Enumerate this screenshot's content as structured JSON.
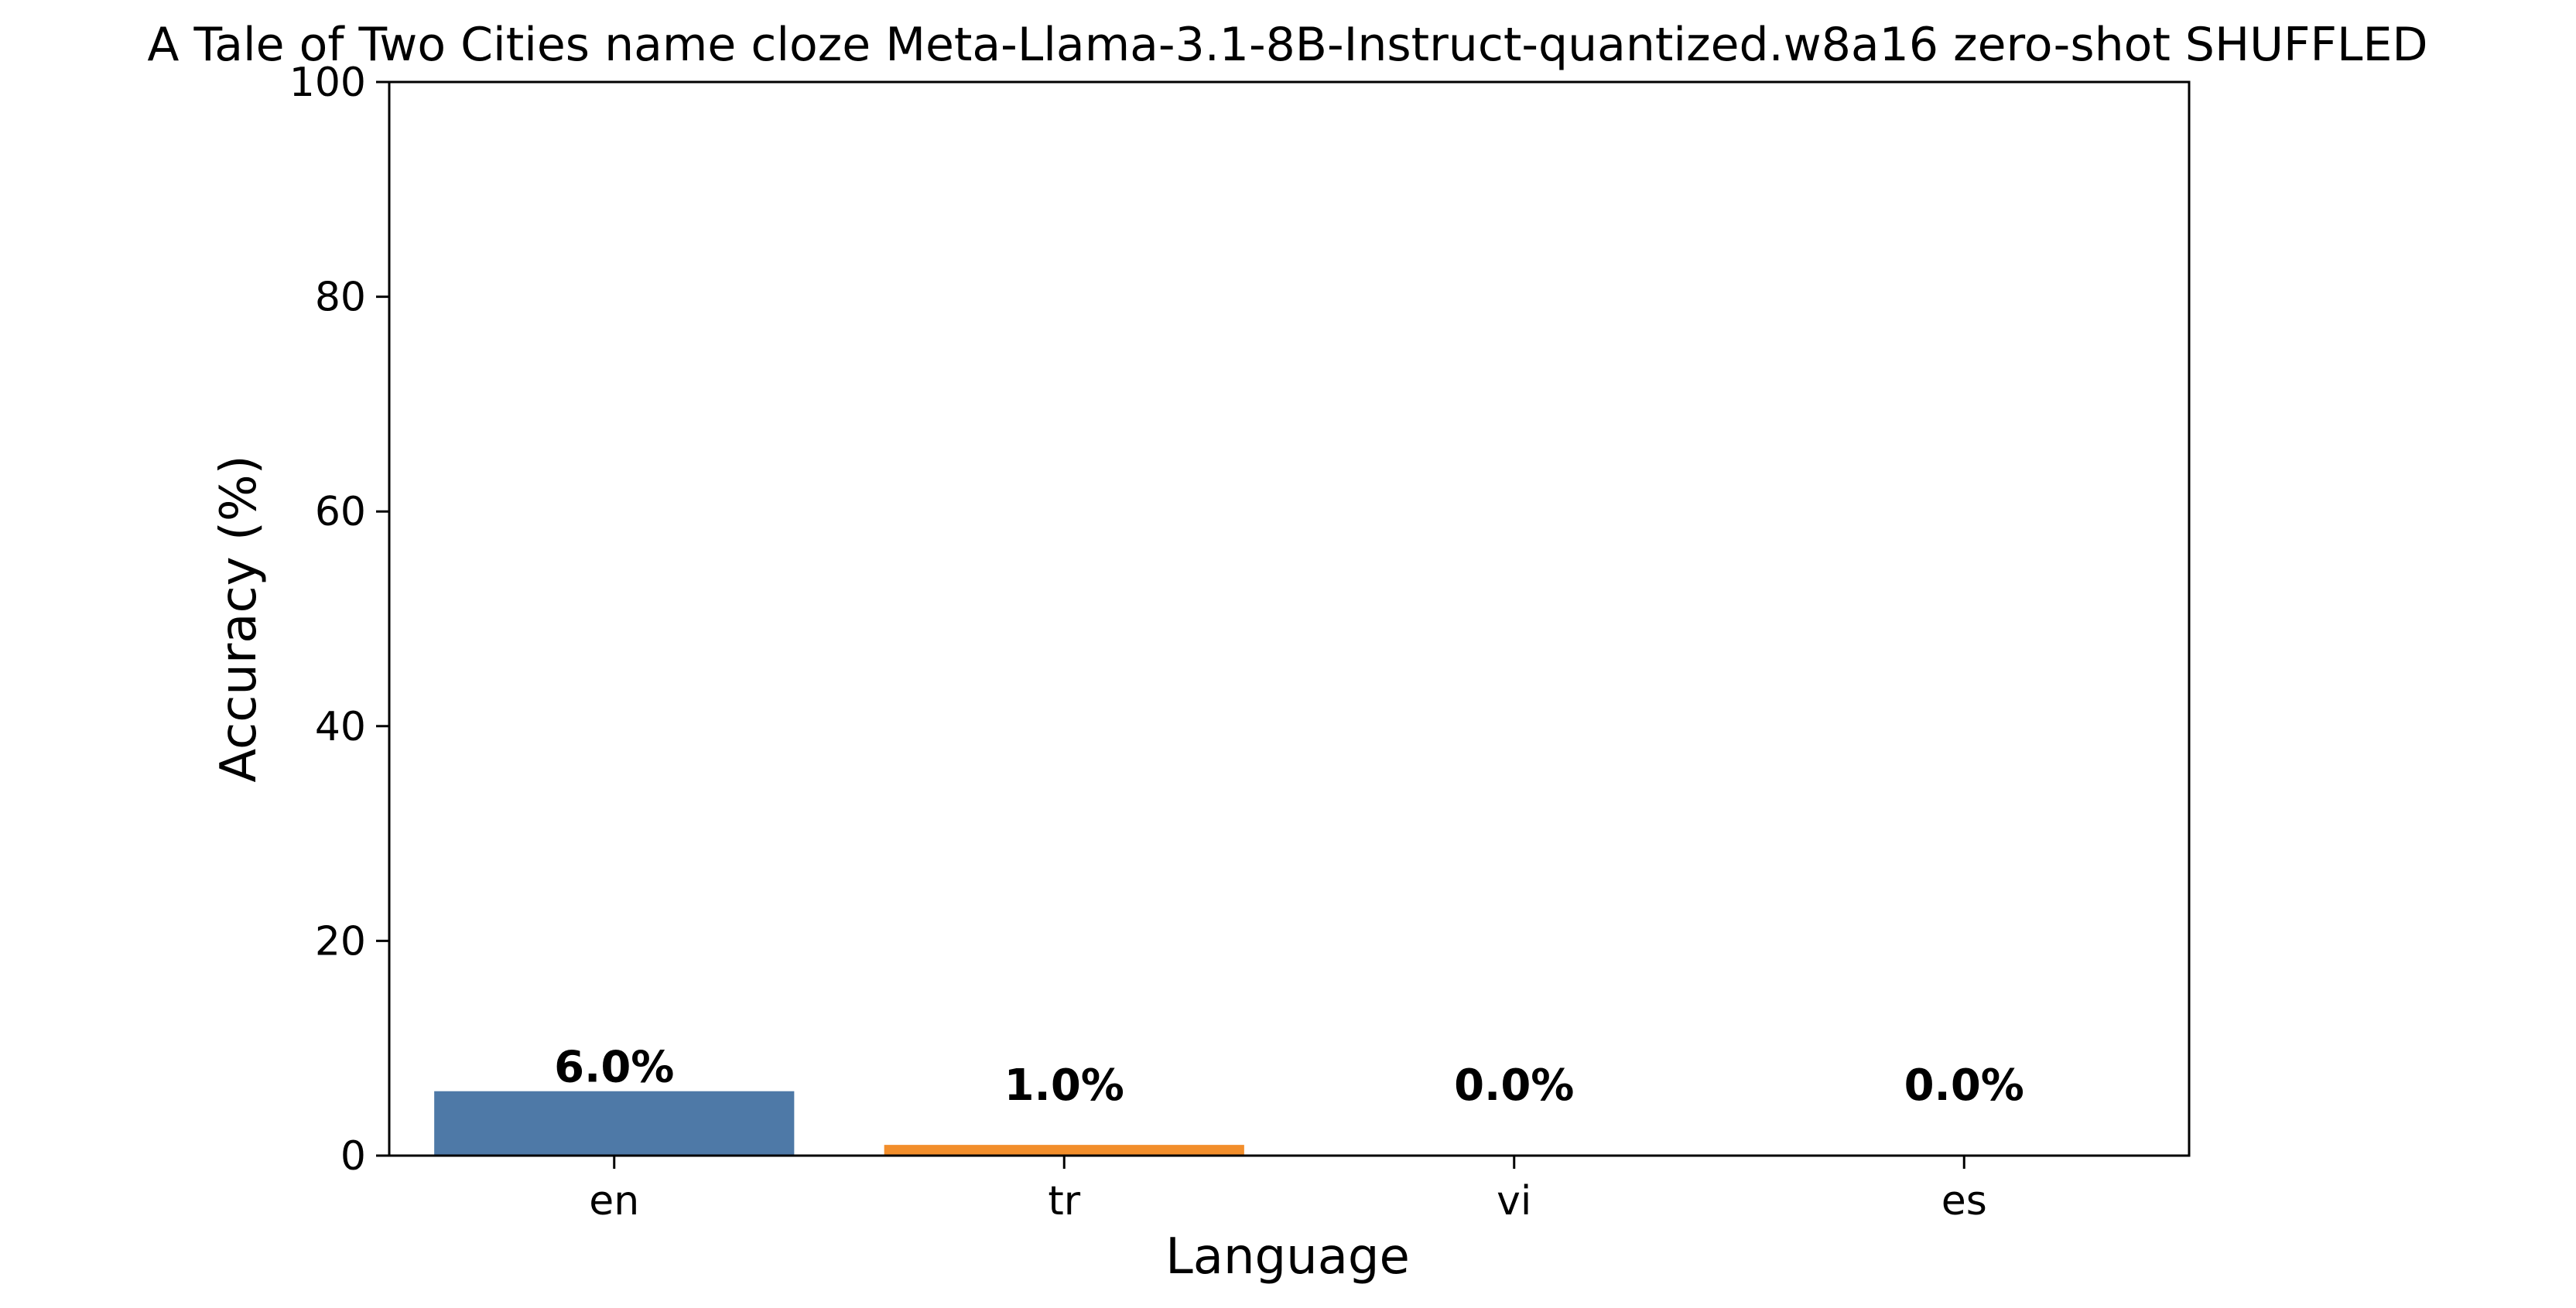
{
  "chart_data": {
    "type": "bar",
    "title": "A Tale of Two Cities name cloze Meta-Llama-3.1-8B-Instruct-quantized.w8a16 zero-shot SHUFFLED",
    "xlabel": "Language",
    "ylabel": "Accuracy (%)",
    "categories": [
      "en",
      "tr",
      "vi",
      "es"
    ],
    "values": [
      6.0,
      1.0,
      0.0,
      0.0
    ],
    "value_labels": [
      "6.0%",
      "1.0%",
      "0.0%",
      "0.0%"
    ],
    "colors": [
      "#4e79a7",
      "#f28e2b",
      "#e15759",
      "#76b7b2"
    ],
    "ylim": [
      0,
      100
    ],
    "yticks": [
      0,
      20,
      40,
      60,
      80,
      100
    ],
    "grid": false,
    "legend": "none"
  }
}
